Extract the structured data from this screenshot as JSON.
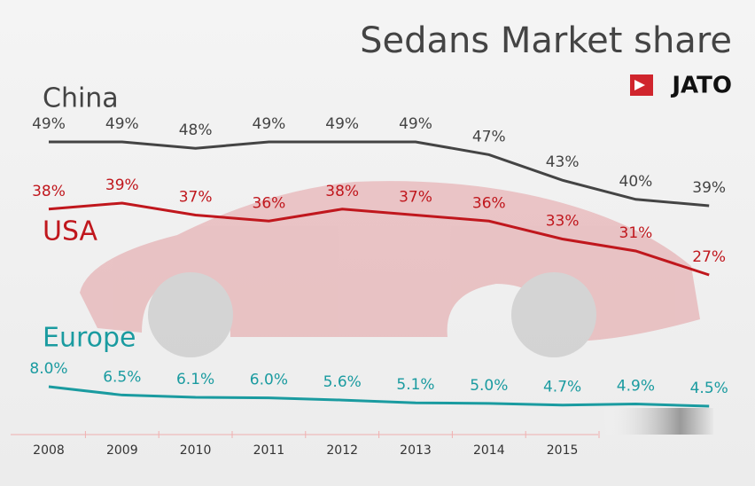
{
  "chart_data": {
    "type": "line",
    "title": "Sedans Market share",
    "logo": "JATO",
    "categories": [
      "2008",
      "2009",
      "2010",
      "2011",
      "2012",
      "2013",
      "2014",
      "2015",
      null,
      null
    ],
    "series": [
      {
        "name": "China",
        "color": "#444444",
        "values": [
          49,
          49,
          48,
          49,
          49,
          49,
          47,
          43,
          40,
          39
        ],
        "value_labels": [
          "49%",
          "49%",
          "48%",
          "49%",
          "49%",
          "49%",
          "47%",
          "43%",
          "40%",
          "39%"
        ]
      },
      {
        "name": "USA",
        "color": "#c0171d",
        "values": [
          38,
          39,
          37,
          36,
          38,
          37,
          36,
          33,
          31,
          27
        ],
        "value_labels": [
          "38%",
          "39%",
          "37%",
          "36%",
          "38%",
          "37%",
          "36%",
          "33%",
          "31%",
          "27%"
        ]
      },
      {
        "name": "Europe",
        "color": "#1a9ba0",
        "values": [
          8.0,
          6.5,
          6.1,
          6.0,
          5.6,
          5.1,
          5.0,
          4.7,
          4.9,
          4.5
        ],
        "value_labels": [
          "8.0%",
          "6.5%",
          "6.1%",
          "6.0%",
          "5.6%",
          "5.1%",
          "5.0%",
          "4.7%",
          "4.9%",
          "4.5%"
        ]
      }
    ]
  }
}
